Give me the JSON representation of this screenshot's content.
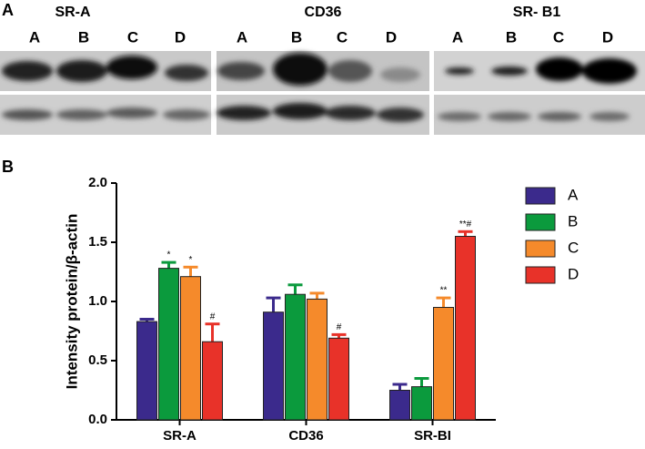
{
  "figure": {
    "panel_a_label": "A",
    "panel_b_label": "B",
    "blots": [
      {
        "title": "SR-A",
        "lanes": [
          "A",
          "B",
          "C",
          "D"
        ]
      },
      {
        "title": "CD36",
        "lanes": [
          "A",
          "B",
          "C",
          "D"
        ]
      },
      {
        "title": "SR- B1",
        "lanes": [
          "A",
          "B",
          "C",
          "D"
        ]
      }
    ]
  },
  "chart_data": {
    "type": "bar",
    "y_label": "Intensity protein/β-actin",
    "categories": [
      "SR-A",
      "CD36",
      "SR-BI"
    ],
    "series": [
      {
        "name": "A",
        "color": "#3b2a8c",
        "values": [
          0.83,
          0.91,
          0.25
        ],
        "errors": [
          0.02,
          0.12,
          0.05
        ],
        "annotations": [
          null,
          null,
          null
        ]
      },
      {
        "name": "B",
        "color": "#0b9a3d",
        "values": [
          1.28,
          1.06,
          0.28
        ],
        "errors": [
          0.05,
          0.08,
          0.07
        ],
        "annotations": [
          "*",
          null,
          null
        ]
      },
      {
        "name": "C",
        "color": "#f58a2b",
        "values": [
          1.21,
          1.02,
          0.95
        ],
        "errors": [
          0.08,
          0.05,
          0.08
        ],
        "annotations": [
          "*",
          null,
          "**"
        ]
      },
      {
        "name": "D",
        "color": "#e83229",
        "values": [
          0.66,
          0.69,
          1.55
        ],
        "errors": [
          0.15,
          0.03,
          0.04
        ],
        "annotations": [
          "#",
          "#",
          "**#"
        ]
      }
    ],
    "ylim": [
      0,
      2
    ],
    "yticks": [
      {
        "value": 0,
        "label": "0.0"
      },
      {
        "value": 0.5,
        "label": "0.5"
      },
      {
        "value": 1,
        "label": "1.0"
      },
      {
        "value": 1.5,
        "label": "1.5"
      },
      {
        "value": 2,
        "label": "2.0"
      }
    ],
    "legend": "right"
  }
}
